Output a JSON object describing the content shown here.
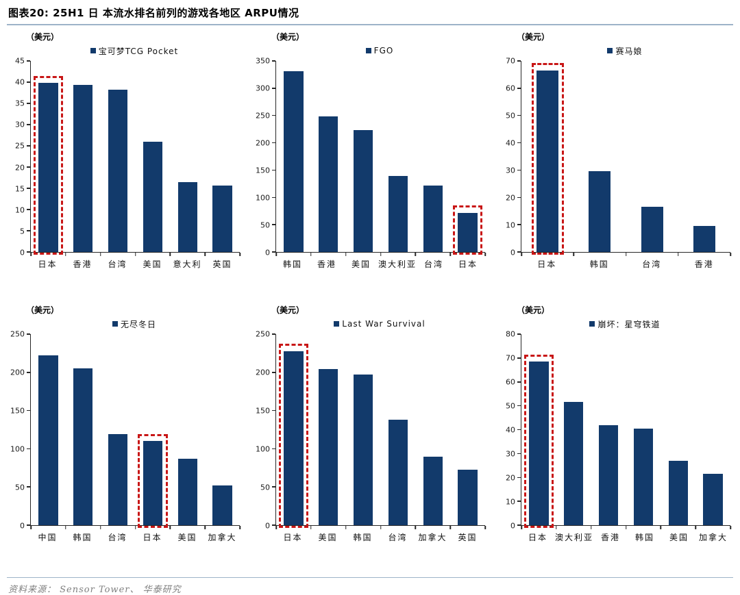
{
  "header": {
    "title": "图表20:  25H1 日 本流水排名前列的游戏各地区 ARPU情况"
  },
  "footer": {
    "source": "资料来源： Sensor Tower、 华泰研究"
  },
  "colors": {
    "bar": "#123a6b",
    "highlight": "#c81616",
    "axis": "#262626",
    "header_rule": "#9db3c8",
    "footer_text": "#7f7f7f"
  },
  "chart_data": [
    {
      "type": "bar",
      "legend": "宝可梦TCG Pocket",
      "unit": "（美元）",
      "categories": [
        "日本",
        "香港",
        "台湾",
        "美国",
        "意大利",
        "英国"
      ],
      "values": [
        39.8,
        39.4,
        38.2,
        25.9,
        16.5,
        15.6
      ],
      "ylim": [
        0,
        45
      ],
      "ytick_step": 5,
      "highlight_category": "日本",
      "highlight_index": 0
    },
    {
      "type": "bar",
      "legend": "FGO",
      "unit": "（美元）",
      "categories": [
        "韩国",
        "香港",
        "美国",
        "澳大利亚",
        "台湾",
        "日本"
      ],
      "values": [
        331,
        248,
        223,
        139,
        122,
        72
      ],
      "ylim": [
        0,
        350
      ],
      "ytick_step": 50,
      "highlight_category": "日本",
      "highlight_index": 5
    },
    {
      "type": "bar",
      "legend": "赛马娘",
      "unit": "（美元）",
      "categories": [
        "日本",
        "韩国",
        "台湾",
        "香港"
      ],
      "values": [
        66.5,
        29.5,
        16.5,
        9.5
      ],
      "ylim": [
        0,
        70
      ],
      "ytick_step": 10,
      "highlight_category": "日本",
      "highlight_index": 0
    },
    {
      "type": "bar",
      "legend": "无尽冬日",
      "unit": "（美元）",
      "categories": [
        "中国",
        "韩国",
        "台湾",
        "日本",
        "美国",
        "加拿大"
      ],
      "values": [
        222,
        205,
        119,
        110,
        87,
        52
      ],
      "ylim": [
        0,
        250
      ],
      "ytick_step": 50,
      "highlight_category": "日本",
      "highlight_index": 3
    },
    {
      "type": "bar",
      "legend": "Last War Survival",
      "unit": "（美元）",
      "categories": [
        "日本",
        "美国",
        "韩国",
        "台湾",
        "加拿大",
        "英国"
      ],
      "values": [
        228,
        204,
        197,
        138,
        90,
        73
      ],
      "ylim": [
        0,
        250
      ],
      "ytick_step": 50,
      "highlight_category": "日本",
      "highlight_index": 0
    },
    {
      "type": "bar",
      "legend": "崩坏：星穹铁道",
      "unit": "（美元）",
      "categories": [
        "日本",
        "澳大利亚",
        "香港",
        "韩国",
        "美国",
        "加拿大"
      ],
      "values": [
        68.5,
        51.5,
        42,
        40.5,
        27,
        21.5
      ],
      "ylim": [
        0,
        80
      ],
      "ytick_step": 10,
      "highlight_category": "日本",
      "highlight_index": 0
    }
  ]
}
